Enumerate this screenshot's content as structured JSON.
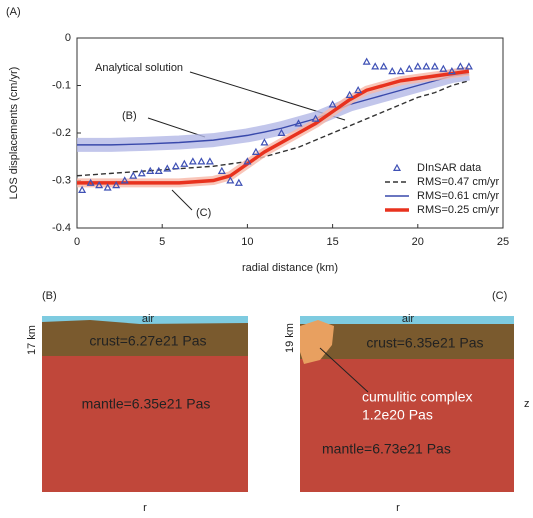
{
  "chart_data": {
    "type": "line",
    "panel_label": "(A)",
    "x_label": "radial distance (km)",
    "y_label": "LOS displacements (cm/yr)",
    "xlim": [
      0,
      25
    ],
    "xticks": [
      0,
      5,
      10,
      15,
      20,
      25
    ],
    "ylim": [
      -0.4,
      0
    ],
    "yticks": [
      0,
      -0.1,
      -0.2,
      -0.3,
      -0.4
    ],
    "legend": "lower right",
    "annotations": [
      "Analytical solution",
      "(B)",
      "(C)"
    ],
    "x": [
      0,
      2,
      4,
      6,
      8,
      9,
      10,
      11,
      12,
      13,
      14,
      15,
      16,
      17,
      18,
      19,
      20,
      21,
      22,
      23
    ],
    "series": [
      {
        "name": "DInSAR data",
        "type": "scatter",
        "color": "#3f51b5",
        "x": [
          0.3,
          0.8,
          1.3,
          1.8,
          2.3,
          2.8,
          3.3,
          3.8,
          4.3,
          4.8,
          5.3,
          5.8,
          6.3,
          6.8,
          7.3,
          7.8,
          8.5,
          9,
          9.5,
          10,
          10.5,
          11,
          12,
          13,
          14,
          15,
          16,
          16.5,
          17,
          17.5,
          18,
          18.5,
          19,
          19.5,
          20,
          20.5,
          21,
          21.5,
          22,
          22.5,
          23
        ],
        "values": [
          -0.32,
          -0.305,
          -0.31,
          -0.315,
          -0.31,
          -0.3,
          -0.29,
          -0.285,
          -0.28,
          -0.28,
          -0.275,
          -0.27,
          -0.265,
          -0.26,
          -0.26,
          -0.26,
          -0.28,
          -0.3,
          -0.305,
          -0.26,
          -0.24,
          -0.22,
          -0.2,
          -0.18,
          -0.17,
          -0.14,
          -0.12,
          -0.11,
          -0.05,
          -0.06,
          -0.06,
          -0.07,
          -0.07,
          -0.065,
          -0.06,
          -0.06,
          -0.06,
          -0.065,
          -0.07,
          -0.06,
          -0.06
        ]
      },
      {
        "name": "RMS=0.47 cm/yr",
        "type": "line",
        "color": "#333333",
        "dashed": true,
        "values": [
          -0.29,
          -0.285,
          -0.28,
          -0.275,
          -0.27,
          -0.265,
          -0.26,
          -0.25,
          -0.24,
          -0.23,
          -0.215,
          -0.2,
          -0.185,
          -0.17,
          -0.155,
          -0.14,
          -0.125,
          -0.115,
          -0.1,
          -0.09
        ]
      },
      {
        "name": "RMS=0.61 cm/yr",
        "type": "line",
        "color": "#3949ab",
        "band_color": "#b3b8e6",
        "values": [
          -0.225,
          -0.225,
          -0.223,
          -0.22,
          -0.215,
          -0.21,
          -0.205,
          -0.198,
          -0.19,
          -0.18,
          -0.17,
          -0.155,
          -0.14,
          -0.13,
          -0.12,
          -0.11,
          -0.1,
          -0.09,
          -0.08,
          -0.075
        ]
      },
      {
        "name": "RMS=0.25 cm/yr",
        "type": "line",
        "color": "#e8321e",
        "band_color": "#f7b8a8",
        "values": [
          -0.305,
          -0.305,
          -0.305,
          -0.305,
          -0.3,
          -0.29,
          -0.265,
          -0.24,
          -0.22,
          -0.2,
          -0.18,
          -0.155,
          -0.13,
          -0.11,
          -0.1,
          -0.09,
          -0.085,
          -0.08,
          -0.075,
          -0.07
        ]
      }
    ]
  },
  "panels": [
    {
      "label": "(B)",
      "depth": "17 km",
      "air": "air",
      "crust": "crust=6.27e21 Pas",
      "mantle": "mantle=6.35e21 Pas",
      "x_label": "r"
    },
    {
      "label": "(C)",
      "depth": "19 km",
      "air": "air",
      "crust": "crust=6.35e21 Pas",
      "complex": [
        "cumulitic complex",
        "1.2e20 Pas"
      ],
      "mantle": "mantle=6.73e21 Pas",
      "x_label": "r",
      "z_label": "z"
    }
  ]
}
